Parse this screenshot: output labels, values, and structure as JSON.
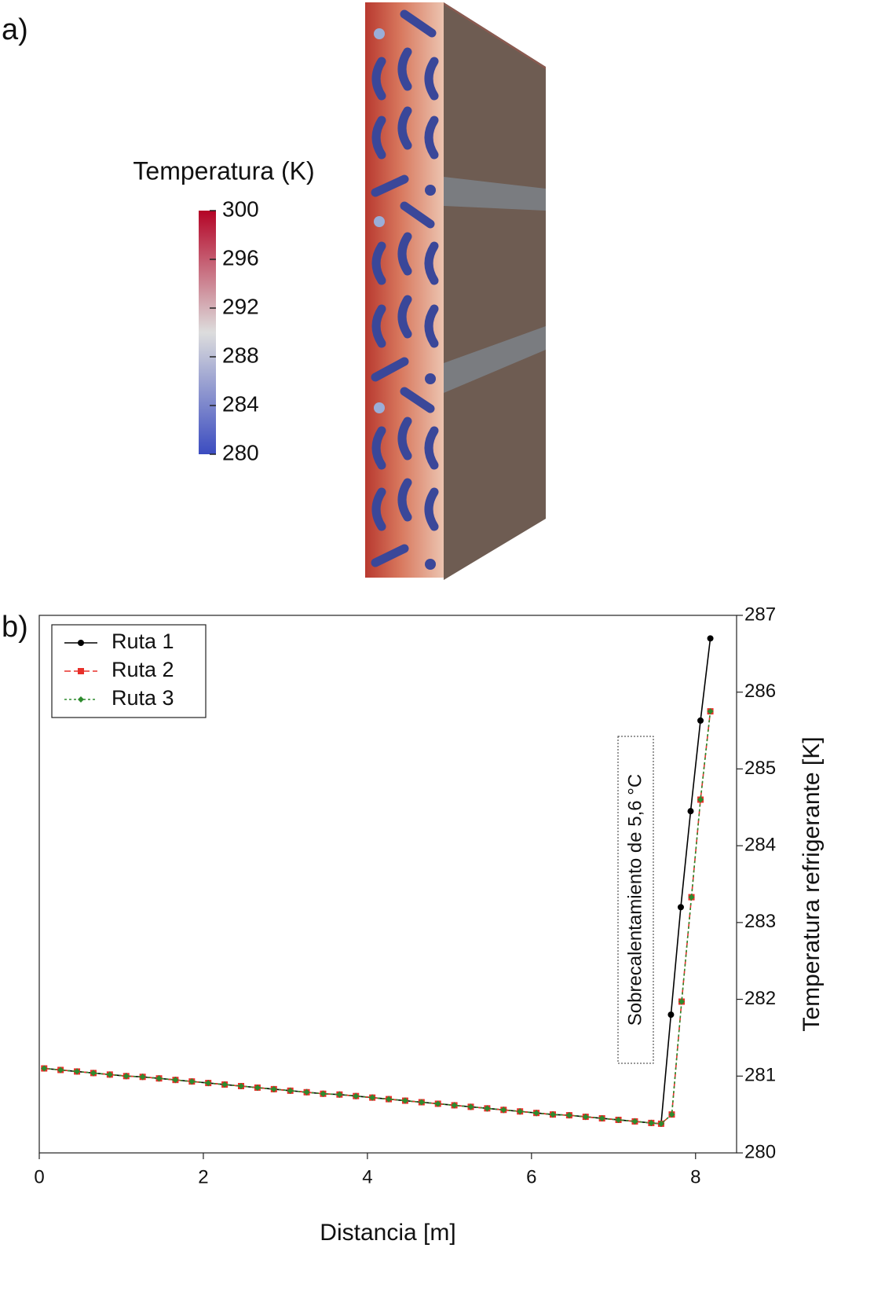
{
  "chart_data": [
    {
      "type": "colorbar",
      "panel_label": "a)",
      "title": "Temperatura (K)",
      "clim": [
        280,
        300
      ],
      "ticks": [
        300,
        296,
        292,
        288,
        284,
        280
      ],
      "colors": [
        "#3b4cc0",
        "#dddddd",
        "#b40426"
      ]
    },
    {
      "type": "line",
      "panel_label": "b)",
      "xlabel": "Distancia [m]",
      "ylabel": "Temperatura refrigerante [K]",
      "annotation": "Sobrecalentamiento de 5,6 °C",
      "xlim": [
        0,
        8.5
      ],
      "xticks": [
        0,
        2,
        4,
        6,
        8
      ],
      "ylim": [
        280,
        287
      ],
      "yticks": [
        280,
        281,
        282,
        283,
        284,
        285,
        286,
        287
      ],
      "legend": "upper left",
      "series": [
        {
          "name": "Ruta 1",
          "color": "#000000",
          "marker": "circle",
          "dash": "none",
          "x": [
            0.06,
            0.26,
            0.46,
            0.66,
            0.86,
            1.06,
            1.26,
            1.46,
            1.66,
            1.86,
            2.06,
            2.26,
            2.46,
            2.66,
            2.86,
            3.06,
            3.26,
            3.46,
            3.66,
            3.86,
            4.06,
            4.26,
            4.46,
            4.66,
            4.86,
            5.06,
            5.26,
            5.46,
            5.66,
            5.86,
            6.06,
            6.26,
            6.46,
            6.66,
            6.86,
            7.06,
            7.26,
            7.46,
            7.58,
            7.7,
            7.82,
            7.94,
            8.06,
            8.18
          ],
          "values": [
            281.1,
            281.08,
            281.06,
            281.04,
            281.02,
            281.0,
            280.99,
            280.97,
            280.95,
            280.93,
            280.91,
            280.89,
            280.87,
            280.85,
            280.83,
            280.81,
            280.79,
            280.77,
            280.76,
            280.74,
            280.72,
            280.7,
            280.68,
            280.66,
            280.64,
            280.62,
            280.6,
            280.58,
            280.56,
            280.54,
            280.52,
            280.5,
            280.49,
            280.47,
            280.45,
            280.43,
            280.41,
            280.39,
            280.38,
            281.8,
            283.2,
            284.45,
            285.63,
            286.7
          ]
        },
        {
          "name": "Ruta 2",
          "color": "#e8302a",
          "marker": "square",
          "dash": "8 4",
          "x": [
            0.06,
            0.26,
            0.46,
            0.66,
            0.86,
            1.06,
            1.26,
            1.46,
            1.66,
            1.86,
            2.06,
            2.26,
            2.46,
            2.66,
            2.86,
            3.06,
            3.26,
            3.46,
            3.66,
            3.86,
            4.06,
            4.26,
            4.46,
            4.66,
            4.86,
            5.06,
            5.26,
            5.46,
            5.66,
            5.86,
            6.06,
            6.26,
            6.46,
            6.66,
            6.86,
            7.06,
            7.26,
            7.46,
            7.58,
            7.71,
            7.83,
            7.95,
            8.06,
            8.18
          ],
          "values": [
            281.1,
            281.08,
            281.06,
            281.04,
            281.02,
            281.0,
            280.99,
            280.97,
            280.95,
            280.93,
            280.91,
            280.89,
            280.87,
            280.85,
            280.83,
            280.81,
            280.79,
            280.77,
            280.76,
            280.74,
            280.72,
            280.7,
            280.68,
            280.66,
            280.64,
            280.62,
            280.6,
            280.58,
            280.56,
            280.54,
            280.52,
            280.5,
            280.49,
            280.47,
            280.45,
            280.43,
            280.41,
            280.39,
            280.38,
            280.5,
            281.97,
            283.33,
            284.6,
            285.75
          ]
        },
        {
          "name": "Ruta 3",
          "color": "#2e8b2e",
          "marker": "diamond",
          "dash": "3 3",
          "x": [
            0.06,
            0.26,
            0.46,
            0.66,
            0.86,
            1.06,
            1.26,
            1.46,
            1.66,
            1.86,
            2.06,
            2.26,
            2.46,
            2.66,
            2.86,
            3.06,
            3.26,
            3.46,
            3.66,
            3.86,
            4.06,
            4.26,
            4.46,
            4.66,
            4.86,
            5.06,
            5.26,
            5.46,
            5.66,
            5.86,
            6.06,
            6.26,
            6.46,
            6.66,
            6.86,
            7.06,
            7.26,
            7.46,
            7.58,
            7.71,
            7.83,
            7.95,
            8.06,
            8.18
          ],
          "values": [
            281.1,
            281.08,
            281.06,
            281.04,
            281.02,
            281.0,
            280.99,
            280.97,
            280.95,
            280.93,
            280.91,
            280.89,
            280.87,
            280.85,
            280.83,
            280.81,
            280.79,
            280.77,
            280.76,
            280.74,
            280.72,
            280.7,
            280.68,
            280.66,
            280.64,
            280.62,
            280.6,
            280.58,
            280.56,
            280.54,
            280.52,
            280.5,
            280.49,
            280.47,
            280.45,
            280.43,
            280.41,
            280.39,
            280.38,
            280.5,
            281.97,
            283.33,
            284.6,
            285.75
          ]
        }
      ]
    }
  ]
}
